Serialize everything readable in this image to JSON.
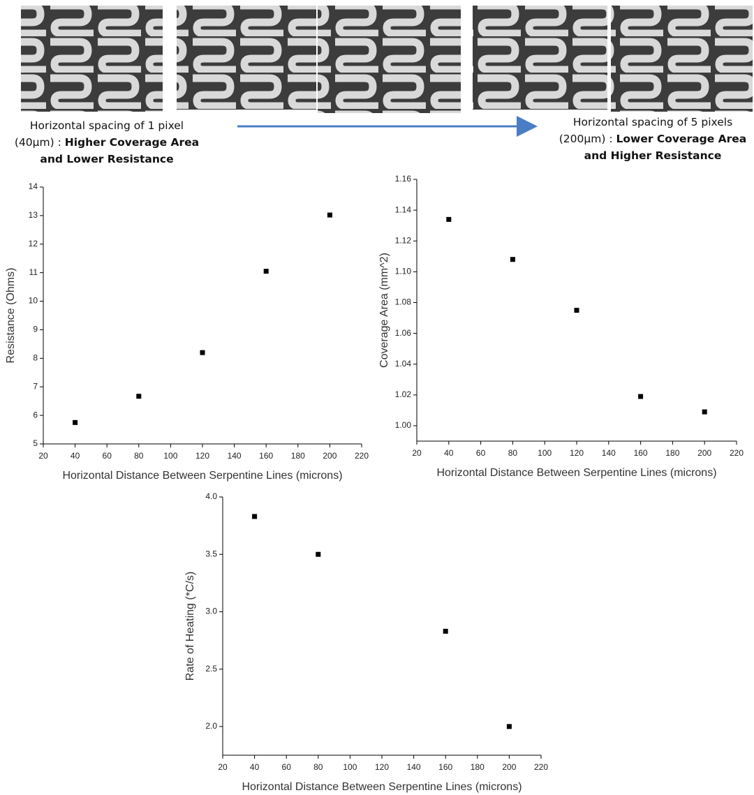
{
  "captions": [
    {
      "plain": "Horizontal spacing of 1 pixel (40μm) :",
      "bold": "Higher Coverage Area and Lower Resistance"
    },
    {
      "plain": "Horizontal spacing of 5 pixels (200μm) :",
      "bold": "Lower Coverage Area and Higher Resistance"
    }
  ],
  "chart_data": [
    {
      "type": "scatter",
      "xlabel": "Horizontal Distance Between Serpentine Lines (microns)",
      "ylabel": "Resistance (Ohms)",
      "x": [
        40,
        80,
        120,
        160,
        200
      ],
      "values": [
        5.75,
        6.67,
        8.2,
        11.05,
        13.02
      ],
      "color": "#000000",
      "xlim": [
        20,
        220
      ],
      "xticks": [
        20,
        40,
        60,
        80,
        100,
        120,
        140,
        160,
        180,
        200,
        220
      ],
      "ylim": [
        5,
        14
      ],
      "yticks": [
        5,
        6,
        7,
        8,
        9,
        10,
        11,
        12,
        13,
        14
      ]
    },
    {
      "type": "scatter",
      "xlabel": "Horizontal Distance Between Serpentine Lines (microns)",
      "ylabel": "Coverage Area (mm^2)",
      "x": [
        40,
        80,
        120,
        160,
        200
      ],
      "values": [
        1.134,
        1.108,
        1.075,
        1.019,
        1.009
      ],
      "color": "#000000",
      "xlim": [
        20,
        220
      ],
      "xticks": [
        20,
        40,
        60,
        80,
        100,
        120,
        140,
        160,
        180,
        200,
        220
      ],
      "ylim": [
        0.99,
        1.16
      ],
      "yticks": [
        {
          "value": 1,
          "label": "1.00"
        },
        1.02,
        1.04,
        1.06,
        1.08,
        {
          "value": 1.1,
          "label": "1.10"
        },
        1.12,
        1.14,
        1.16
      ]
    },
    {
      "type": "scatter",
      "xlabel": "Horizontal Distance Between Serpentine Lines (microns)",
      "ylabel": "Rate of Heating (*C/s)",
      "x": [
        40,
        80,
        160,
        200
      ],
      "values": [
        3.83,
        3.5,
        2.83,
        2.0
      ],
      "color": "#000000",
      "xlim": [
        20,
        220
      ],
      "xticks": [
        20,
        40,
        60,
        80,
        100,
        120,
        140,
        160,
        180,
        200,
        220
      ],
      "ylim": [
        1.75,
        4.0
      ],
      "yticks": [
        {
          "value": 2,
          "label": "2.0"
        },
        2.5,
        {
          "value": 3,
          "label": "3.0"
        },
        3.5,
        {
          "value": 4,
          "label": "4.0"
        }
      ]
    }
  ]
}
